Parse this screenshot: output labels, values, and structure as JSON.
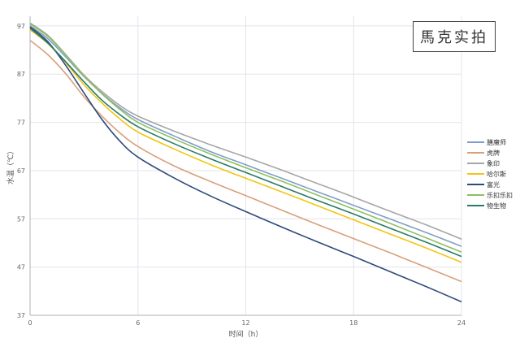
{
  "watermark": "馬克实拍",
  "chart_data": {
    "type": "line",
    "xlabel": "时间（h）",
    "ylabel": "水温（℃）",
    "xlim": [
      0,
      24
    ],
    "ylim": [
      37,
      99
    ],
    "x_ticks": [
      0,
      6,
      12,
      18,
      24
    ],
    "y_ticks": [
      37,
      47,
      57,
      67,
      77,
      87,
      97
    ],
    "grid": true,
    "legend_position": "right",
    "x": [
      0,
      1,
      2,
      3,
      4,
      5,
      6,
      8,
      10,
      12,
      14,
      16,
      18,
      20,
      22,
      24
    ],
    "series": [
      {
        "name": "膳魔师",
        "color": "#7f9fc7",
        "values": [
          97,
          94.3,
          90.5,
          86.5,
          83,
          80,
          77.6,
          74.2,
          71,
          68.2,
          65.4,
          62.6,
          59.8,
          57,
          54.2,
          51.3
        ]
      },
      {
        "name": "虎牌",
        "color": "#d9a07a",
        "values": [
          94,
          91,
          87,
          82.3,
          78.3,
          74.8,
          72,
          68,
          64.8,
          61.8,
          58.8,
          55.8,
          52.9,
          50,
          47,
          44
        ]
      },
      {
        "name": "象印",
        "color": "#a6a6a6",
        "values": [
          97.6,
          95,
          91,
          86.8,
          83.4,
          80.5,
          78.3,
          75.2,
          72.4,
          69.8,
          67.1,
          64.3,
          61.5,
          58.6,
          55.8,
          52.8
        ]
      },
      {
        "name": "哈尔斯",
        "color": "#f2c514",
        "values": [
          96.2,
          93.3,
          89.3,
          84.8,
          81,
          77.7,
          75,
          71.5,
          68.3,
          65.4,
          62.6,
          59.7,
          56.8,
          53.9,
          51,
          48
        ]
      },
      {
        "name": "富光",
        "color": "#2e4a7a",
        "values": [
          96.8,
          93.7,
          88.7,
          83.1,
          77.6,
          73.1,
          69.8,
          65.5,
          61.8,
          58.5,
          55.3,
          52.2,
          49.2,
          46.1,
          43,
          39.8
        ]
      },
      {
        "name": "乐扣乐扣",
        "color": "#8fbf5f",
        "values": [
          97.4,
          94.8,
          90.9,
          86.6,
          82.9,
          79.7,
          77,
          73.6,
          70.5,
          67.6,
          64.8,
          61.9,
          59,
          56.1,
          53.1,
          50.1
        ]
      },
      {
        "name": "物生物",
        "color": "#2a7a6a",
        "values": [
          96.5,
          93.4,
          89.5,
          85.4,
          81.6,
          78.6,
          76.1,
          72.6,
          69.5,
          66.6,
          63.7,
          60.8,
          58,
          55.1,
          52.2,
          49.2
        ]
      }
    ]
  }
}
